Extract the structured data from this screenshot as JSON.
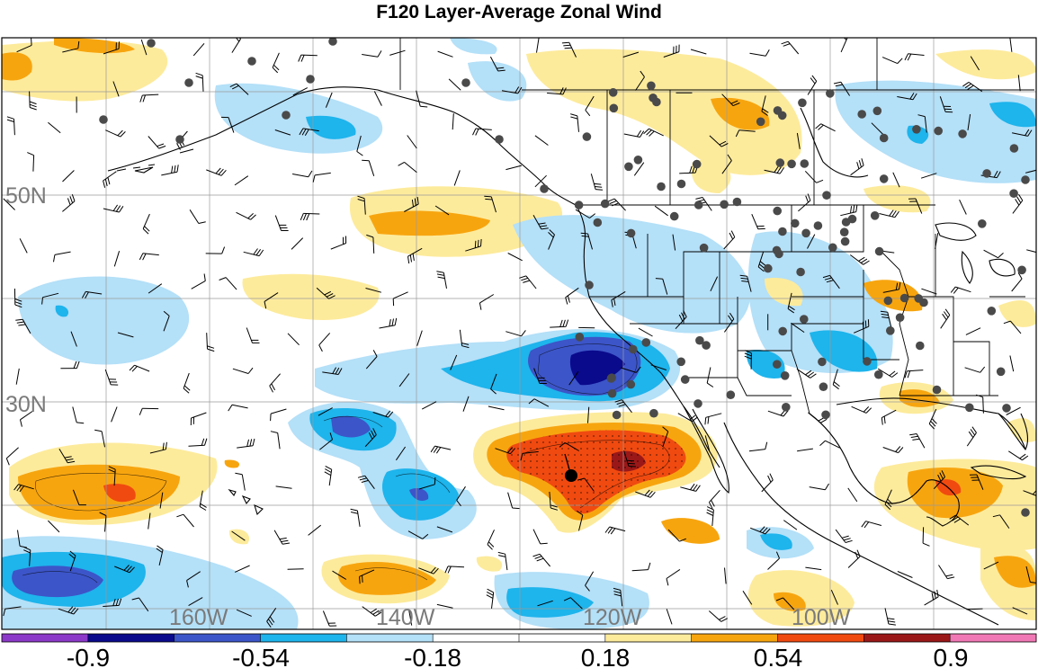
{
  "title": "F120 Layer-Average Zonal Wind",
  "lat_labels": [
    "50N",
    "30N"
  ],
  "lon_labels": [
    "160W",
    "140W",
    "120W",
    "100W"
  ],
  "colorbar": {
    "colors": [
      "#8c38c8",
      "#0a0a8c",
      "#3c55c8",
      "#1eb4ec",
      "#b4e0f8",
      "#ffffff",
      "#ffffff",
      "#fdeb9c",
      "#f7a50f",
      "#f04a10",
      "#9b1818",
      "#f078b4"
    ],
    "tick_labels": [
      "-0.9",
      "-0.54",
      "-0.18",
      "0.18",
      "0.54",
      "0.9"
    ]
  }
}
